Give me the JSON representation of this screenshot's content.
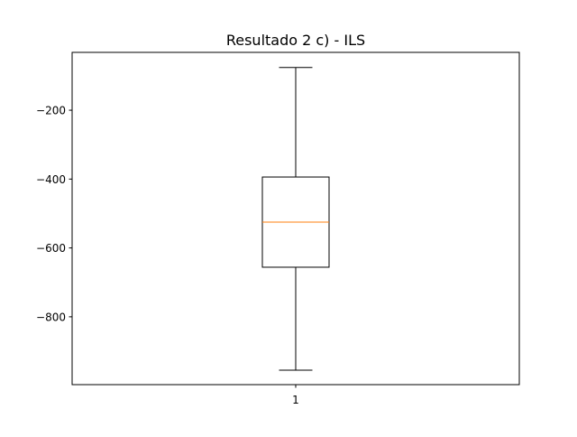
{
  "chart_data": {
    "type": "box",
    "title": "Resultado 2 c) - ILS",
    "xlabel": "",
    "ylabel": "",
    "categories": [
      "1"
    ],
    "boxes": [
      {
        "category": "1",
        "whisker_low": -955,
        "q1": -656,
        "median": -525,
        "q3": -394,
        "whisker_high": -76
      }
    ],
    "yticks": [
      -200,
      -400,
      -600,
      -800
    ],
    "ytick_labels": [
      "−200",
      "−400",
      "−600",
      "−800"
    ],
    "ylim": [
      -997,
      -32
    ],
    "grid": false,
    "colors": {
      "box": "#000000",
      "median": "#ff7f0e",
      "frame": "#000000"
    }
  }
}
